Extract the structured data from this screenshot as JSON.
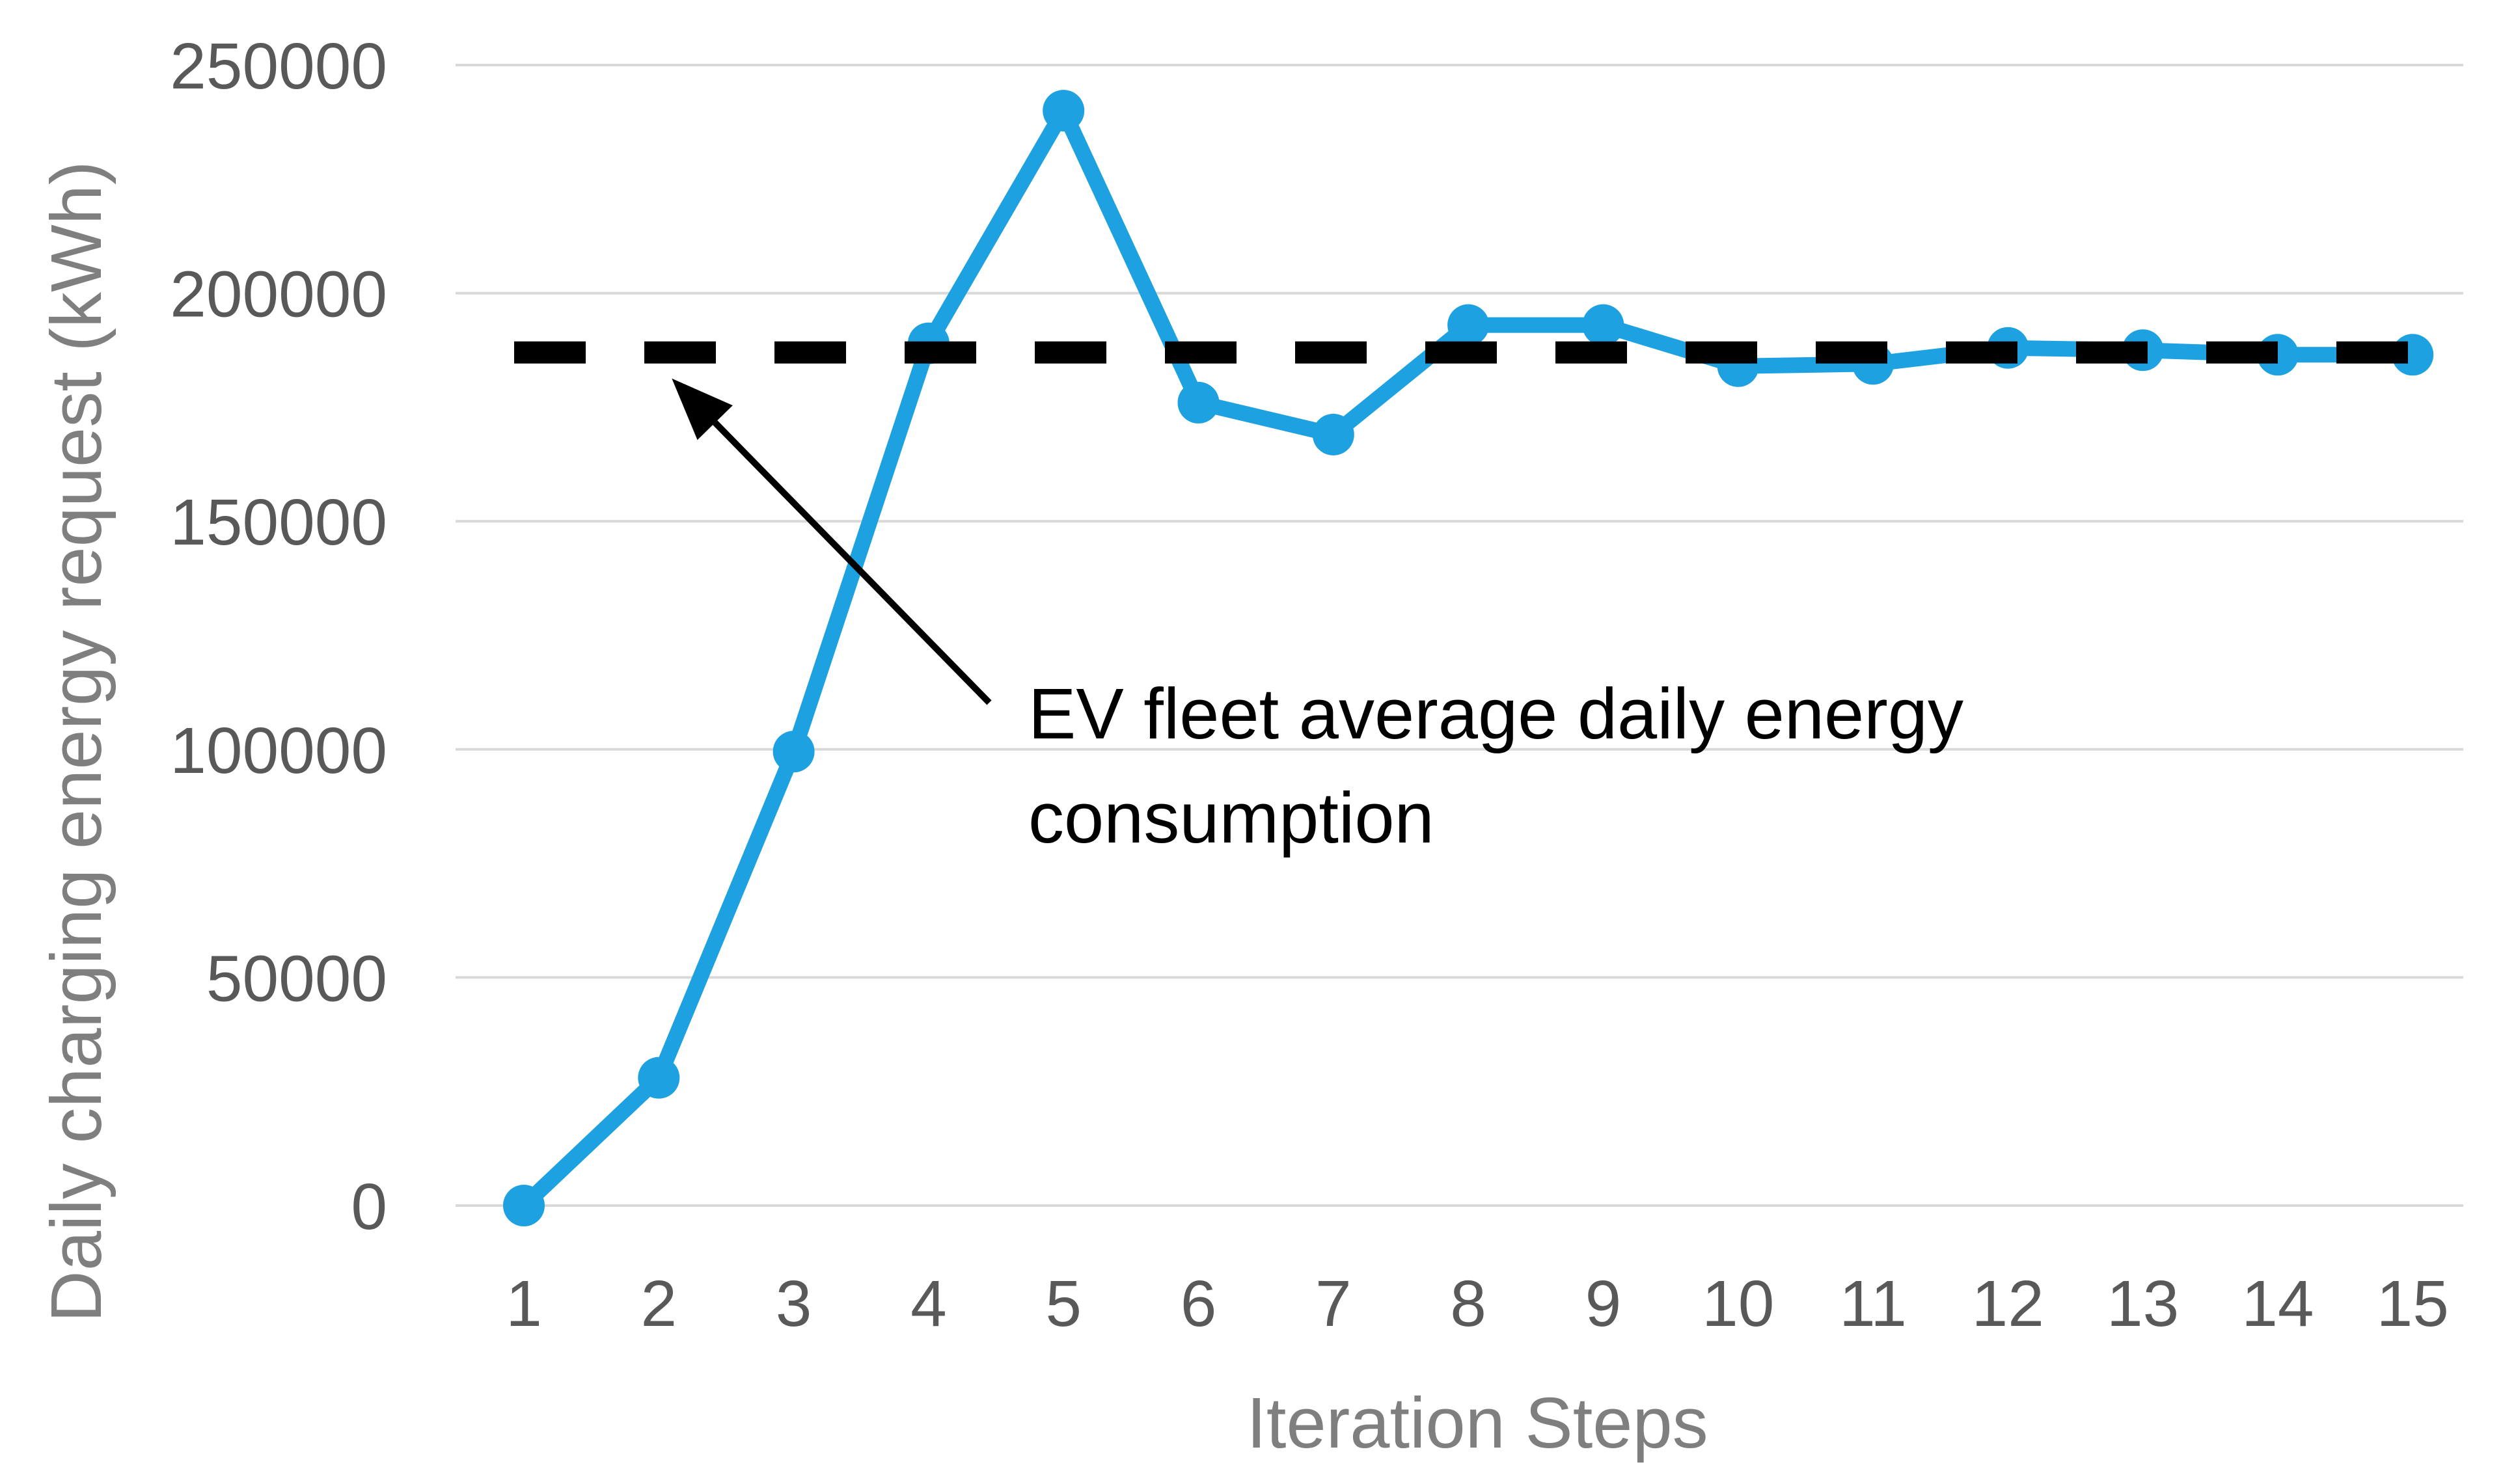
{
  "chart_data": {
    "type": "line",
    "title": "",
    "xlabel": "Iteration Steps",
    "ylabel": "Daily charging energy request (kWh)",
    "categories": [
      "1",
      "2",
      "3",
      "4",
      "5",
      "6",
      "7",
      "8",
      "9",
      "10",
      "11",
      "12",
      "13",
      "14",
      "15"
    ],
    "series": [
      {
        "name": "Daily charging energy request",
        "values": [
          0,
          28000,
          99500,
          189000,
          240000,
          176000,
          169000,
          193000,
          193000,
          184000,
          184500,
          188000,
          187500,
          186500,
          186500
        ],
        "color": "#1ea1e0",
        "marker": "circle"
      }
    ],
    "reference_line": {
      "name": "EV fleet average daily energy consumption",
      "value": 187000,
      "color": "#000000",
      "style": "dashed"
    },
    "annotation": {
      "text_line1": "EV fleet average daily energy",
      "text_line2": "consumption",
      "arrow_target_category": "2"
    },
    "ylim": [
      0,
      250000
    ],
    "yticks": [
      "0",
      "50000",
      "100000",
      "150000",
      "200000",
      "250000"
    ],
    "grid": true,
    "grid_color": "#d9d9d9",
    "tick_color": "#595959",
    "legend": "none"
  }
}
